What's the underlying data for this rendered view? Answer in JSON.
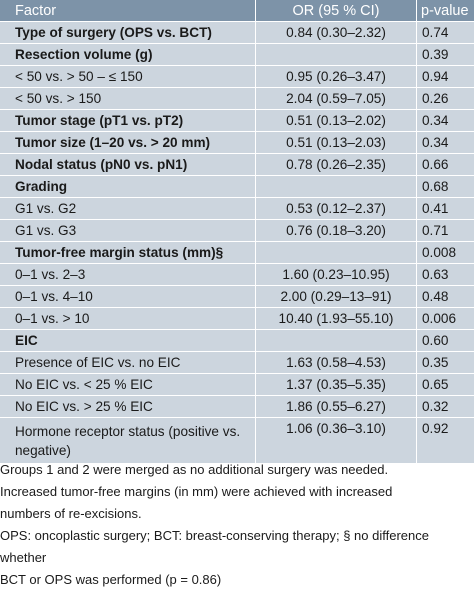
{
  "table": {
    "headers": {
      "factor": "Factor",
      "or": "OR (95 % CI)",
      "p": "p-value"
    },
    "rows": [
      {
        "factor": "Type of surgery (OPS vs. BCT)",
        "or": "0.84 (0.30–2.32)",
        "p": "0.74",
        "bold": true
      },
      {
        "factor": "Resection volume (g)",
        "or": "",
        "p": "0.39",
        "bold": true
      },
      {
        "factor": "< 50 vs. > 50 – ≤ 150",
        "or": "0.95 (0.26–3.47)",
        "p": "0.94",
        "bold": false
      },
      {
        "factor": "< 50 vs. > 150",
        "or": "2.04 (0.59–7.05)",
        "p": "0.26",
        "bold": false
      },
      {
        "factor": "Tumor stage (pT1 vs. pT2)",
        "or": "0.51 (0.13–2.02)",
        "p": "0.34",
        "bold": true
      },
      {
        "factor": "Tumor size (1–20 vs. > 20 mm)",
        "or": "0.51 (0.13–2.03)",
        "p": "0.34",
        "bold": true
      },
      {
        "factor": "Nodal status (pN0 vs. pN1)",
        "or": "0.78 (0.26–2.35)",
        "p": "0.66",
        "bold": true
      },
      {
        "factor": "Grading",
        "or": "",
        "p": "0.68",
        "bold": true
      },
      {
        "factor": "G1 vs. G2",
        "or": "0.53 (0.12–2.37)",
        "p": "0.41",
        "bold": false
      },
      {
        "factor": "G1 vs. G3",
        "or": "0.76 (0.18–3.20)",
        "p": "0.71",
        "bold": false
      },
      {
        "factor": "Tumor-free margin status (mm)§",
        "or": "",
        "p": "0.008",
        "bold": true
      },
      {
        "factor": "0–1 vs. 2–3",
        "or": "1.60 (0.23–10.95)",
        "p": "0.63",
        "bold": false
      },
      {
        "factor": "0–1 vs. 4–10",
        "or": "2.00 (0.29–13–91)",
        "p": "0.48",
        "bold": false
      },
      {
        "factor": "0–1 vs. > 10",
        "or": "10.40 (1.93–55.10)",
        "p": "0.006",
        "bold": false
      },
      {
        "factor": "EIC",
        "or": "",
        "p": "0.60",
        "bold": true
      },
      {
        "factor": "Presence of EIC vs. no EIC",
        "or": "1.63 (0.58–4.53)",
        "p": "0.35",
        "bold": false
      },
      {
        "factor": "No EIC vs. < 25 % EIC",
        "or": "1.37 (0.35–5.35)",
        "p": "0.65",
        "bold": false
      },
      {
        "factor": "No EIC vs. > 25 % EIC",
        "or": "1.86 (0.55–6.27)",
        "p": "0.32",
        "bold": false
      },
      {
        "factor": "Hormone receptor status (positive vs. negative)",
        "or": "1.06 (0.36–3.10)",
        "p": "0.92",
        "bold": false,
        "tall": true
      }
    ]
  },
  "footnotes": [
    "Groups 1 and 2 were merged as no additional surgery was needed.",
    "Increased tumor-free margins (in mm) were achieved with increased",
    "numbers of re-excisions.",
    "OPS: oncoplastic surgery; BCT: breast-conserving therapy; § no difference whether",
    "BCT or OPS was performed (p = 0.86)"
  ]
}
